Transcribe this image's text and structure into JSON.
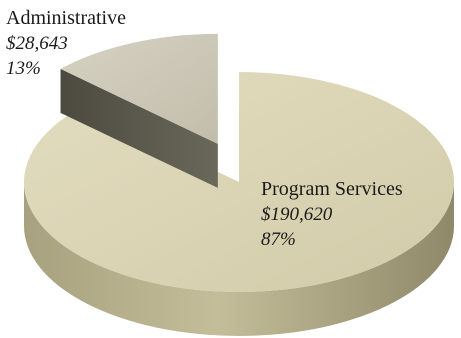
{
  "chart_data": {
    "type": "pie",
    "style": "3d-exploded",
    "slices": [
      {
        "name": "Program Services",
        "value": 190620,
        "value_label": "$190,620",
        "percent_label": "87%",
        "color": "#ddd6b6"
      },
      {
        "name": "Administrative",
        "value": 28643,
        "value_label": "$28,643",
        "percent_label": "13%",
        "color": "#cdc8b6"
      }
    ]
  }
}
